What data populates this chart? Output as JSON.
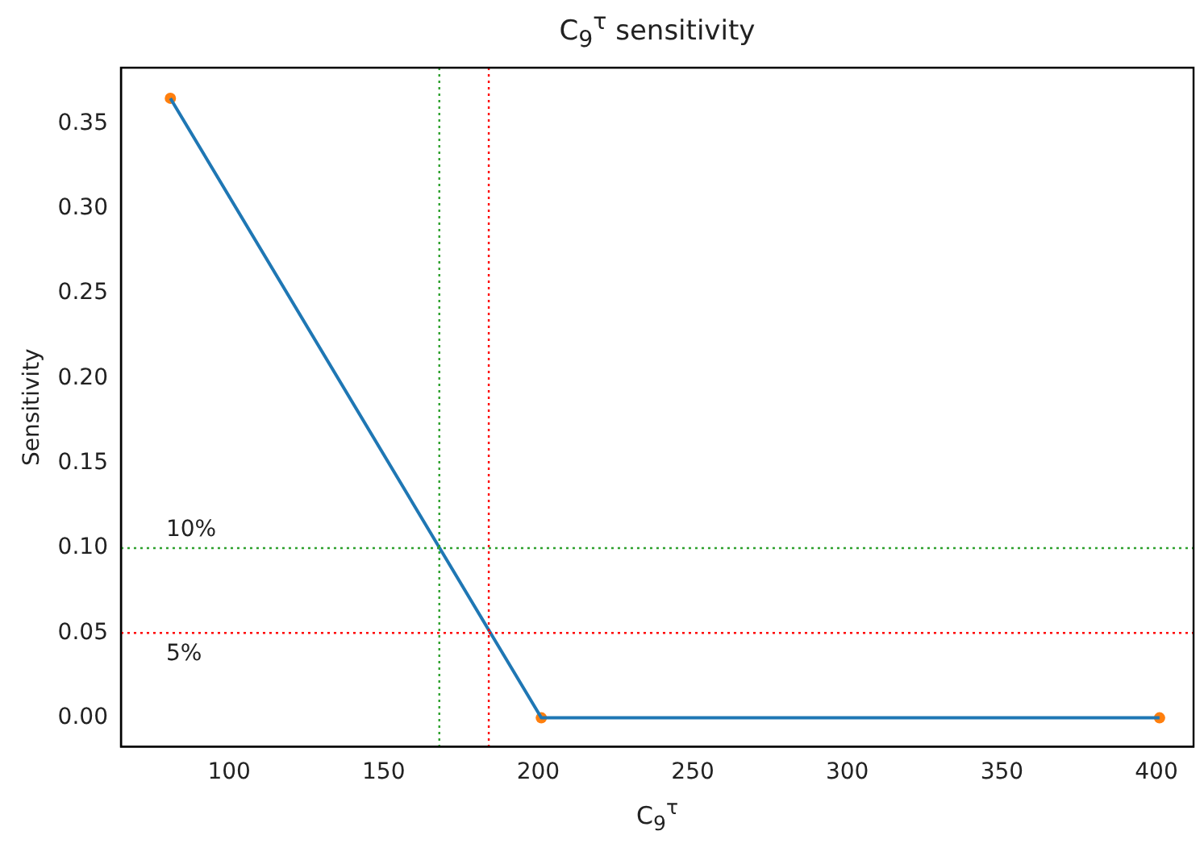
{
  "chart_data": {
    "type": "line",
    "title": "C$_{9}$$^{τ}$ sensitivity",
    "xlabel": "C$_{9}$$^{τ}$",
    "ylabel": "Sensitivity",
    "x": [
      81,
      201,
      401
    ],
    "series": [
      {
        "color": "#1f77b4",
        "marker": "none",
        "values": [
          0.365,
          0,
          0
        ]
      },
      {
        "type": "scatter",
        "color": "#ff7f0e",
        "marker": "circle",
        "values": [
          0.365,
          0,
          0
        ]
      }
    ],
    "xlim": [
      65,
      412
    ],
    "xticks": [
      100,
      150,
      200,
      250,
      300,
      350,
      400
    ],
    "ylim": [
      -0.017,
      0.383
    ],
    "yticks": [
      {
        "value": 0,
        "label": "0.00"
      },
      {
        "value": 0.05,
        "label": "0.05"
      },
      {
        "value": 0.1,
        "label": "0.10"
      },
      {
        "value": 0.15,
        "label": "0.15"
      },
      {
        "value": 0.2,
        "label": "0.20"
      },
      {
        "value": 0.25,
        "label": "0.25"
      },
      {
        "value": 0.3,
        "label": "0.30"
      },
      {
        "value": 0.35,
        "label": "0.35"
      }
    ],
    "ref_lines": [
      {
        "axis": "x",
        "value": 168,
        "color": "#2ca02c",
        "line_style": "dotted"
      },
      {
        "axis": "x",
        "value": 184,
        "color": "#ff0000",
        "line_style": "dotted"
      },
      {
        "axis": "y",
        "value": 0.1,
        "label": "10%",
        "color": "#2ca02c",
        "line_style": "dotted"
      },
      {
        "axis": "y",
        "value": 0.05,
        "label": "5%",
        "color": "#ff0000",
        "line_style": "dotted"
      }
    ],
    "grid": false,
    "legend": false
  }
}
